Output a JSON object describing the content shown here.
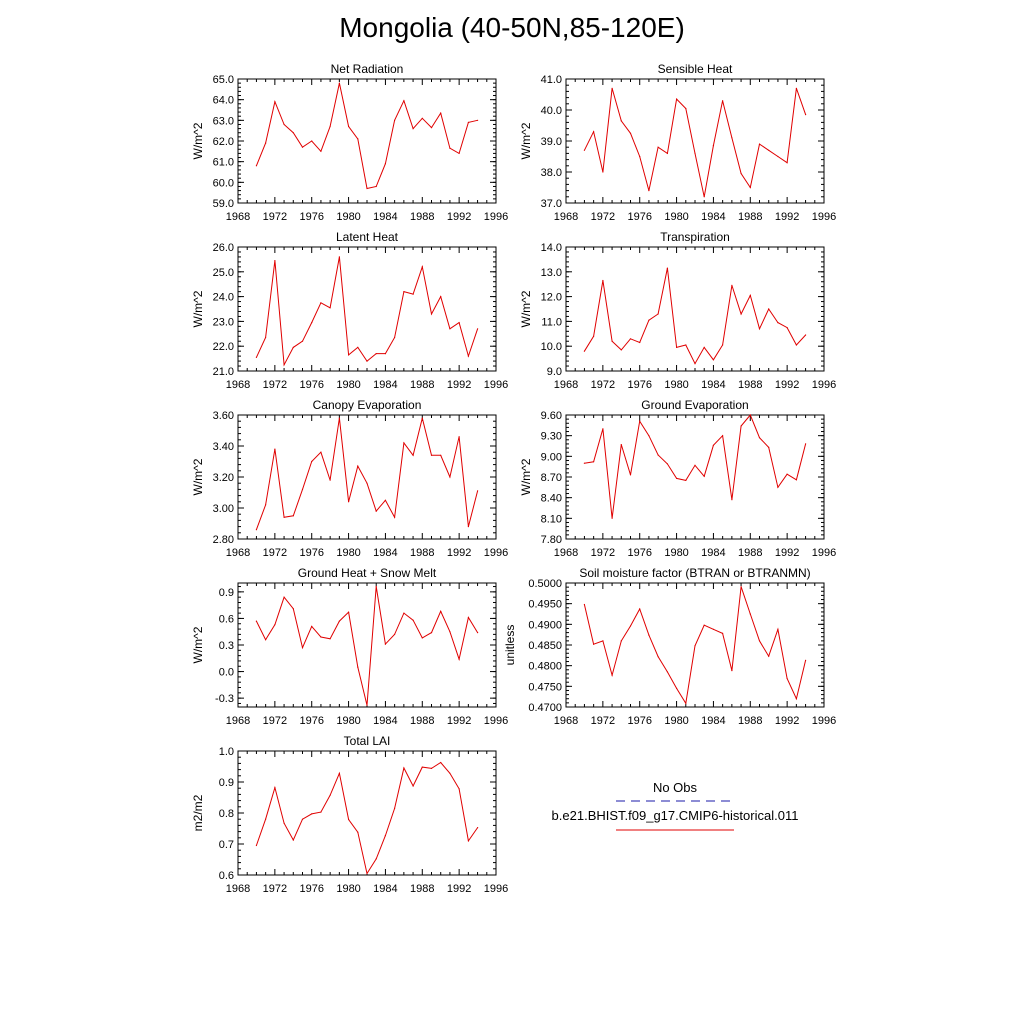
{
  "page": {
    "title": "Mongolia (40-50N,85-120E)"
  },
  "legend": {
    "obs_label": "No Obs",
    "obs_color": "#1a1aa8",
    "model_label": "b.e21.BHIST.f09_g17.CMIP6-historical.011",
    "model_color": "#e00000"
  },
  "chart_data": [
    {
      "type": "line",
      "title": "Net Radiation",
      "ylabel": "W/m^2",
      "xlim": [
        1968,
        1996
      ],
      "ylim": [
        59.0,
        65.0
      ],
      "xticks": [
        1968,
        1972,
        1976,
        1980,
        1984,
        1988,
        1992,
        1996
      ],
      "yticks": [
        "59.0",
        "60.0",
        "61.0",
        "62.0",
        "63.0",
        "64.0",
        "65.0"
      ],
      "grid": false,
      "x": [
        1970,
        1971,
        1972,
        1973,
        1974,
        1975,
        1976,
        1977,
        1978,
        1979,
        1980,
        1981,
        1982,
        1983,
        1984,
        1985,
        1986,
        1987,
        1988,
        1989,
        1990,
        1991,
        1992,
        1993,
        1994
      ],
      "series": [
        {
          "color": "#e00000",
          "values": [
            60.8,
            61.9,
            63.9,
            62.8,
            62.4,
            61.7,
            62.0,
            61.5,
            62.7,
            64.8,
            62.7,
            62.1,
            59.7,
            59.8,
            60.9,
            63.0,
            63.95,
            62.6,
            63.1,
            62.65,
            63.35,
            61.65,
            61.4,
            62.9,
            63.0
          ]
        }
      ]
    },
    {
      "type": "line",
      "title": "Sensible Heat",
      "ylabel": "W/m^2",
      "xlim": [
        1968,
        1996
      ],
      "ylim": [
        37.0,
        41.0
      ],
      "xticks": [
        1968,
        1972,
        1976,
        1980,
        1984,
        1988,
        1992,
        1996
      ],
      "yticks": [
        "37.0",
        "38.0",
        "39.0",
        "40.0",
        "41.0"
      ],
      "grid": false,
      "x": [
        1970,
        1971,
        1972,
        1973,
        1974,
        1975,
        1976,
        1977,
        1978,
        1979,
        1980,
        1981,
        1982,
        1983,
        1984,
        1985,
        1986,
        1987,
        1988,
        1989,
        1990,
        1991,
        1992,
        1993,
        1994
      ],
      "series": [
        {
          "color": "#e00000",
          "values": [
            38.7,
            39.3,
            38.0,
            40.7,
            39.65,
            39.25,
            38.5,
            37.4,
            38.8,
            38.6,
            40.35,
            40.05,
            38.6,
            37.2,
            38.85,
            40.3,
            39.1,
            37.95,
            37.5,
            38.9,
            38.7,
            38.5,
            38.3,
            40.7,
            39.85
          ]
        }
      ]
    },
    {
      "type": "line",
      "title": "Latent Heat",
      "ylabel": "W/m^2",
      "xlim": [
        1968,
        1996
      ],
      "ylim": [
        21.0,
        26.0
      ],
      "xticks": [
        1968,
        1972,
        1976,
        1980,
        1984,
        1988,
        1992,
        1996
      ],
      "yticks": [
        "21.0",
        "22.0",
        "23.0",
        "24.0",
        "25.0",
        "26.0"
      ],
      "grid": false,
      "x": [
        1970,
        1971,
        1972,
        1973,
        1974,
        1975,
        1976,
        1977,
        1978,
        1979,
        1980,
        1981,
        1982,
        1983,
        1984,
        1985,
        1986,
        1987,
        1988,
        1989,
        1990,
        1991,
        1992,
        1993,
        1994
      ],
      "series": [
        {
          "color": "#e00000",
          "values": [
            21.55,
            22.35,
            25.45,
            21.25,
            21.95,
            22.2,
            22.95,
            23.75,
            23.55,
            25.6,
            21.65,
            21.95,
            21.4,
            21.7,
            21.7,
            22.35,
            24.2,
            24.1,
            25.2,
            23.3,
            24.0,
            22.7,
            22.95,
            21.6,
            22.7
          ]
        }
      ]
    },
    {
      "type": "line",
      "title": "Transpiration",
      "ylabel": "W/m^2",
      "xlim": [
        1968,
        1996
      ],
      "ylim": [
        9.0,
        14.0
      ],
      "xticks": [
        1968,
        1972,
        1976,
        1980,
        1984,
        1988,
        1992,
        1996
      ],
      "yticks": [
        "9.0",
        "10.0",
        "11.0",
        "12.0",
        "13.0",
        "14.0"
      ],
      "grid": false,
      "x": [
        1970,
        1971,
        1972,
        1973,
        1974,
        1975,
        1976,
        1977,
        1978,
        1979,
        1980,
        1981,
        1982,
        1983,
        1984,
        1985,
        1986,
        1987,
        1988,
        1989,
        1990,
        1991,
        1992,
        1993,
        1994
      ],
      "series": [
        {
          "color": "#e00000",
          "values": [
            9.8,
            10.4,
            12.65,
            10.2,
            9.85,
            10.3,
            10.15,
            11.05,
            11.3,
            13.15,
            9.95,
            10.05,
            9.3,
            9.95,
            9.45,
            10.05,
            12.45,
            11.3,
            12.05,
            10.7,
            11.5,
            10.95,
            10.75,
            10.05,
            10.45
          ]
        }
      ]
    },
    {
      "type": "line",
      "title": "Canopy Evaporation",
      "ylabel": "W/m^2",
      "xlim": [
        1968,
        1996
      ],
      "ylim": [
        2.8,
        3.6
      ],
      "xticks": [
        1968,
        1972,
        1976,
        1980,
        1984,
        1988,
        1992,
        1996
      ],
      "yticks": [
        "2.80",
        "3.00",
        "3.20",
        "3.40",
        "3.60"
      ],
      "grid": false,
      "x": [
        1970,
        1971,
        1972,
        1973,
        1974,
        1975,
        1976,
        1977,
        1978,
        1979,
        1980,
        1981,
        1982,
        1983,
        1984,
        1985,
        1986,
        1987,
        1988,
        1989,
        1990,
        1991,
        1992,
        1993,
        1994
      ],
      "series": [
        {
          "color": "#e00000",
          "values": [
            2.86,
            3.02,
            3.38,
            2.94,
            2.95,
            3.12,
            3.3,
            3.36,
            3.18,
            3.58,
            3.04,
            3.27,
            3.16,
            2.98,
            3.05,
            2.94,
            3.42,
            3.34,
            3.58,
            3.34,
            3.34,
            3.2,
            3.46,
            2.88,
            3.11
          ]
        }
      ]
    },
    {
      "type": "line",
      "title": "Ground Evaporation",
      "ylabel": "W/m^2",
      "xlim": [
        1968,
        1996
      ],
      "ylim": [
        7.8,
        9.6
      ],
      "xticks": [
        1968,
        1972,
        1976,
        1980,
        1984,
        1988,
        1992,
        1996
      ],
      "yticks": [
        "7.80",
        "8.10",
        "8.40",
        "8.70",
        "9.00",
        "9.30",
        "9.60"
      ],
      "grid": false,
      "x": [
        1970,
        1971,
        1972,
        1973,
        1974,
        1975,
        1976,
        1977,
        1978,
        1979,
        1980,
        1981,
        1982,
        1983,
        1984,
        1985,
        1986,
        1987,
        1988,
        1989,
        1990,
        1991,
        1992,
        1993,
        1994
      ],
      "series": [
        {
          "color": "#e00000",
          "values": [
            8.9,
            8.92,
            9.4,
            8.1,
            9.17,
            8.73,
            9.51,
            9.3,
            9.02,
            8.89,
            8.68,
            8.65,
            8.87,
            8.71,
            9.16,
            9.3,
            8.37,
            9.44,
            9.6,
            9.27,
            9.13,
            8.55,
            8.74,
            8.66,
            9.18
          ]
        }
      ]
    },
    {
      "type": "line",
      "title": "Ground Heat + Snow Melt",
      "ylabel": "W/m^2",
      "xlim": [
        1968,
        1996
      ],
      "ylim": [
        -0.4,
        1.0
      ],
      "xticks": [
        1968,
        1972,
        1976,
        1980,
        1984,
        1988,
        1992,
        1996
      ],
      "yticks": [
        "-0.3",
        "0.0",
        "0.3",
        "0.6",
        "0.9"
      ],
      "ytick_values": [
        -0.3,
        0.0,
        0.3,
        0.6,
        0.9
      ],
      "grid": false,
      "x": [
        1970,
        1971,
        1972,
        1973,
        1974,
        1975,
        1976,
        1977,
        1978,
        1979,
        1980,
        1981,
        1982,
        1983,
        1984,
        1985,
        1986,
        1987,
        1988,
        1989,
        1990,
        1991,
        1992,
        1993,
        1994
      ],
      "series": [
        {
          "color": "#e00000",
          "values": [
            0.57,
            0.36,
            0.53,
            0.84,
            0.71,
            0.27,
            0.51,
            0.39,
            0.37,
            0.57,
            0.67,
            0.05,
            -0.38,
            0.96,
            0.31,
            0.42,
            0.66,
            0.58,
            0.38,
            0.44,
            0.68,
            0.45,
            0.14,
            0.61,
            0.44
          ]
        }
      ]
    },
    {
      "type": "line",
      "title": "Soil moisture factor (BTRAN or BTRANMN)",
      "ylabel": "unitless",
      "xlim": [
        1968,
        1996
      ],
      "ylim": [
        0.47,
        0.5
      ],
      "xticks": [
        1968,
        1972,
        1976,
        1980,
        1984,
        1988,
        1992,
        1996
      ],
      "yticks": [
        "0.4700",
        "0.4750",
        "0.4800",
        "0.4850",
        "0.4900",
        "0.4950",
        "0.5000"
      ],
      "grid": false,
      "x": [
        1970,
        1971,
        1972,
        1973,
        1974,
        1975,
        1976,
        1977,
        1978,
        1979,
        1980,
        1981,
        1982,
        1983,
        1984,
        1985,
        1986,
        1987,
        1988,
        1989,
        1990,
        1991,
        1992,
        1993,
        1994
      ],
      "series": [
        {
          "color": "#e00000",
          "values": [
            0.4948,
            0.4852,
            0.486,
            0.4777,
            0.486,
            0.4896,
            0.4937,
            0.4874,
            0.4822,
            0.4785,
            0.4745,
            0.4709,
            0.4848,
            0.4898,
            0.4888,
            0.4878,
            0.4788,
            0.4991,
            0.4925,
            0.486,
            0.4823,
            0.4888,
            0.4769,
            0.472,
            0.4813
          ]
        }
      ]
    },
    {
      "type": "line",
      "title": "Total LAI",
      "ylabel": "m2/m2",
      "xlim": [
        1968,
        1996
      ],
      "ylim": [
        0.6,
        1.0
      ],
      "xticks": [
        1968,
        1972,
        1976,
        1980,
        1984,
        1988,
        1992,
        1996
      ],
      "yticks": [
        "0.6",
        "0.7",
        "0.8",
        "0.9",
        "1.0"
      ],
      "grid": false,
      "x": [
        1970,
        1971,
        1972,
        1973,
        1974,
        1975,
        1976,
        1977,
        1978,
        1979,
        1980,
        1981,
        1982,
        1983,
        1984,
        1985,
        1986,
        1987,
        1988,
        1989,
        1990,
        1991,
        1992,
        1993,
        1994
      ],
      "series": [
        {
          "color": "#e00000",
          "values": [
            0.695,
            0.78,
            0.882,
            0.767,
            0.713,
            0.78,
            0.797,
            0.803,
            0.857,
            0.928,
            0.779,
            0.738,
            0.605,
            0.652,
            0.727,
            0.815,
            0.945,
            0.887,
            0.948,
            0.944,
            0.963,
            0.928,
            0.878,
            0.71,
            0.753
          ]
        }
      ]
    }
  ]
}
